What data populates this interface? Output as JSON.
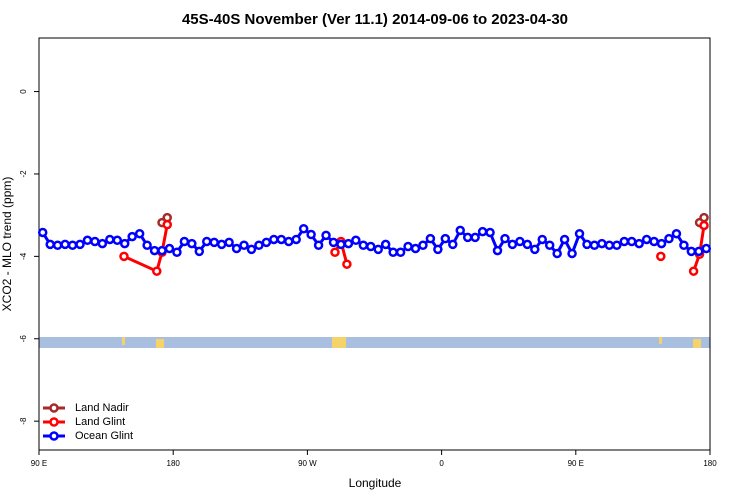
{
  "chart_data": {
    "type": "line",
    "title": "45S-40S November (Ver 11.1)   2014-09-06 to 2023-04-30",
    "x_label": "Longitude",
    "y_label": "XCO2 - MLO trend (ppm)",
    "xlim": [
      90,
      540
    ],
    "ylim": [
      -8.7,
      1.3
    ],
    "xticks": [
      {
        "value": 90,
        "label": "90 E"
      },
      180,
      {
        "value": 270,
        "label": "90 W"
      },
      {
        "value": 360,
        "label": "0"
      },
      {
        "value": 450,
        "label": "90 E"
      },
      {
        "value": 540,
        "label": "180"
      }
    ],
    "yticks": [
      0,
      -2,
      -4,
      -6,
      -8
    ],
    "legend": "bottom-left",
    "series": [
      {
        "name": "Land Nadir",
        "color": "#a52a2a",
        "x": [
          172.5,
          176,
          350,
          533,
          536
        ],
        "values": [
          -3.18,
          -3.06,
          null,
          -3.18,
          -3.06
        ]
      },
      {
        "name": "Land Glint",
        "color": "#ff0000",
        "x": [
          147,
          169,
          172.5,
          176,
          232,
          288.5,
          292.5,
          296.5,
          400,
          507,
          518,
          529,
          533,
          536
        ],
        "values": [
          -4.0,
          -4.36,
          -3.9,
          -3.23,
          null,
          -3.9,
          -3.64,
          -4.19,
          null,
          -4.0,
          null,
          -4.36,
          -3.95,
          -3.25
        ]
      },
      {
        "name": "Ocean Glint",
        "color": "#0000ff",
        "x": [
          92.5,
          97.5,
          102.5,
          107.5,
          112.5,
          117.5,
          122.5,
          127.5,
          132.5,
          137.5,
          142.5,
          147.5,
          152.5,
          157.5,
          162.5,
          167.5,
          172.5,
          177.5,
          182.5,
          187.5,
          192.5,
          197.5,
          202.5,
          207.5,
          212.5,
          217.5,
          222.5,
          227.5,
          232.5,
          237.5,
          242.5,
          247.5,
          252.5,
          257.5,
          262.5,
          267.5,
          272.5,
          277.5,
          282.5,
          287.5,
          292.5,
          297.5,
          302.5,
          307.5,
          312.5,
          317.5,
          322.5,
          327.5,
          332.5,
          337.5,
          342.5,
          347.5,
          352.5,
          357.5,
          362.5,
          367.5,
          372.5,
          377.5,
          382.5,
          387.5,
          392.5,
          397.5,
          402.5,
          407.5,
          412.5,
          417.5,
          422.5,
          427.5,
          432.5,
          437.5,
          442.5,
          447.5,
          452.5,
          457.5,
          462.5,
          467.5,
          472.5,
          477.5,
          482.5,
          487.5,
          492.5,
          497.5,
          502.5,
          507.5,
          512.5,
          517.5,
          522.5,
          527.5,
          532.5,
          537.5
        ],
        "values": [
          -3.42,
          -3.71,
          -3.73,
          -3.71,
          -3.73,
          -3.71,
          -3.61,
          -3.64,
          -3.69,
          -3.59,
          -3.61,
          -3.69,
          -3.52,
          -3.45,
          -3.73,
          -3.86,
          -3.86,
          -3.81,
          -3.9,
          -3.64,
          -3.69,
          -3.88,
          -3.64,
          -3.66,
          -3.71,
          -3.66,
          -3.81,
          -3.73,
          -3.83,
          -3.73,
          -3.66,
          -3.59,
          -3.59,
          -3.64,
          -3.59,
          -3.33,
          -3.47,
          -3.73,
          -3.49,
          -3.66,
          -3.71,
          -3.69,
          -3.61,
          -3.73,
          -3.76,
          -3.83,
          -3.71,
          -3.9,
          -3.9,
          -3.76,
          -3.81,
          -3.73,
          -3.57,
          -3.83,
          -3.57,
          -3.71,
          -3.37,
          -3.54,
          -3.54,
          -3.4,
          -3.42,
          -3.86,
          -3.57,
          -3.71,
          -3.64,
          -3.71,
          -3.83,
          -3.59,
          -3.73,
          -3.93,
          -3.59,
          -3.93,
          -3.45,
          -3.71,
          -3.73,
          -3.69,
          -3.73,
          -3.73,
          -3.64,
          -3.64,
          -3.69,
          -3.59,
          -3.64,
          -3.69,
          -3.57,
          -3.45,
          -3.73,
          -3.88,
          -3.88,
          -3.81
        ]
      }
    ]
  }
}
